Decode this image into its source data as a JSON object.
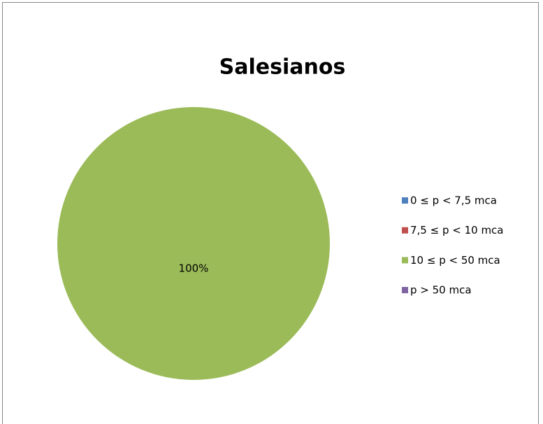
{
  "chart_data": {
    "type": "pie",
    "title": "Salesianos",
    "categories": [
      "0 ≤ p < 7,5 mca",
      "7,5 ≤ p < 10 mca",
      "10 ≤ p < 50 mca",
      "p > 50 mca"
    ],
    "values": [
      0,
      0,
      100,
      0
    ],
    "value_labels": [
      null,
      null,
      "100%",
      null
    ],
    "colors": [
      "#4f81bd",
      "#c0504d",
      "#9bbb59",
      "#8064a2"
    ],
    "legend": "right"
  }
}
